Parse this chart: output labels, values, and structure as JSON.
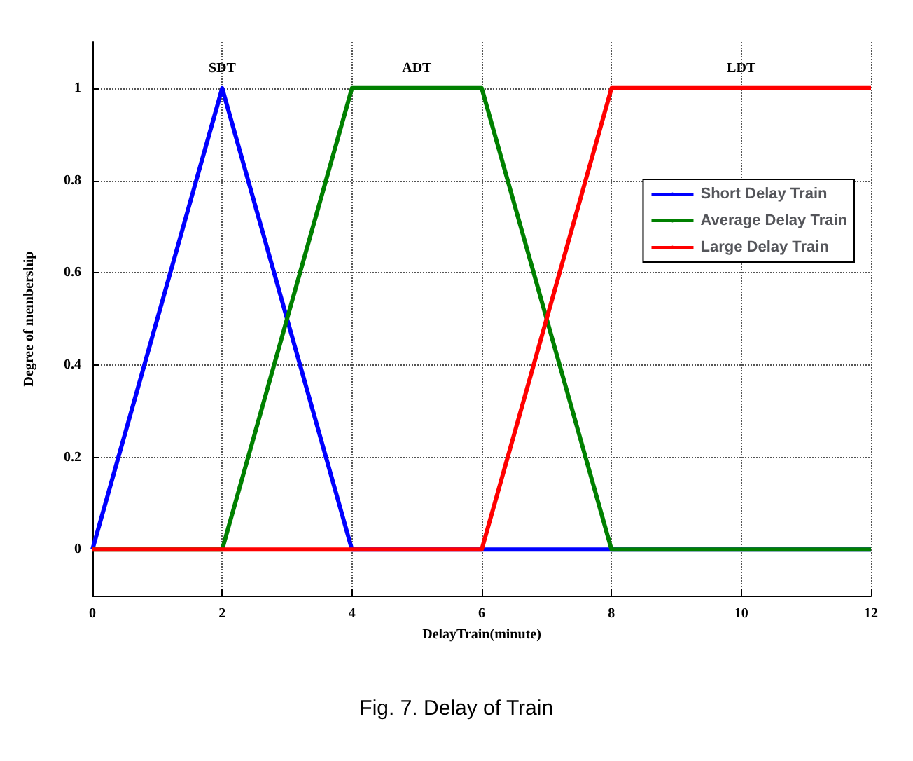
{
  "chart_data": {
    "type": "line",
    "xlabel": "DelayTrain(minute)",
    "ylabel": "Degree of membership",
    "series": [
      {
        "name": "Short Delay Train",
        "color": "#0000ff",
        "x": [
          0,
          2,
          4,
          12
        ],
        "values": [
          0,
          1,
          0,
          0
        ]
      },
      {
        "name": "Average Delay Train",
        "color": "#008000",
        "x": [
          0,
          2,
          4,
          6,
          8,
          12
        ],
        "values": [
          0,
          0,
          1,
          1,
          0,
          0
        ]
      },
      {
        "name": "Large Delay Train",
        "color": "#ff0000",
        "x": [
          0,
          6,
          8,
          12
        ],
        "values": [
          0,
          0,
          1,
          1
        ]
      }
    ],
    "xlim": [
      0,
      12
    ],
    "xticks": [
      0,
      2,
      4,
      6,
      8,
      10,
      12
    ],
    "ylim": [
      -0.1,
      1.1
    ],
    "yticks": [
      0,
      0.2,
      0.4,
      0.6,
      0.8,
      1
    ],
    "grid": true,
    "legend": "top right",
    "marker": "none",
    "line_style": "solid",
    "annotations": [
      "SDT",
      "ADT",
      "LDT",
      "Fig. 7. Delay of Train"
    ]
  }
}
